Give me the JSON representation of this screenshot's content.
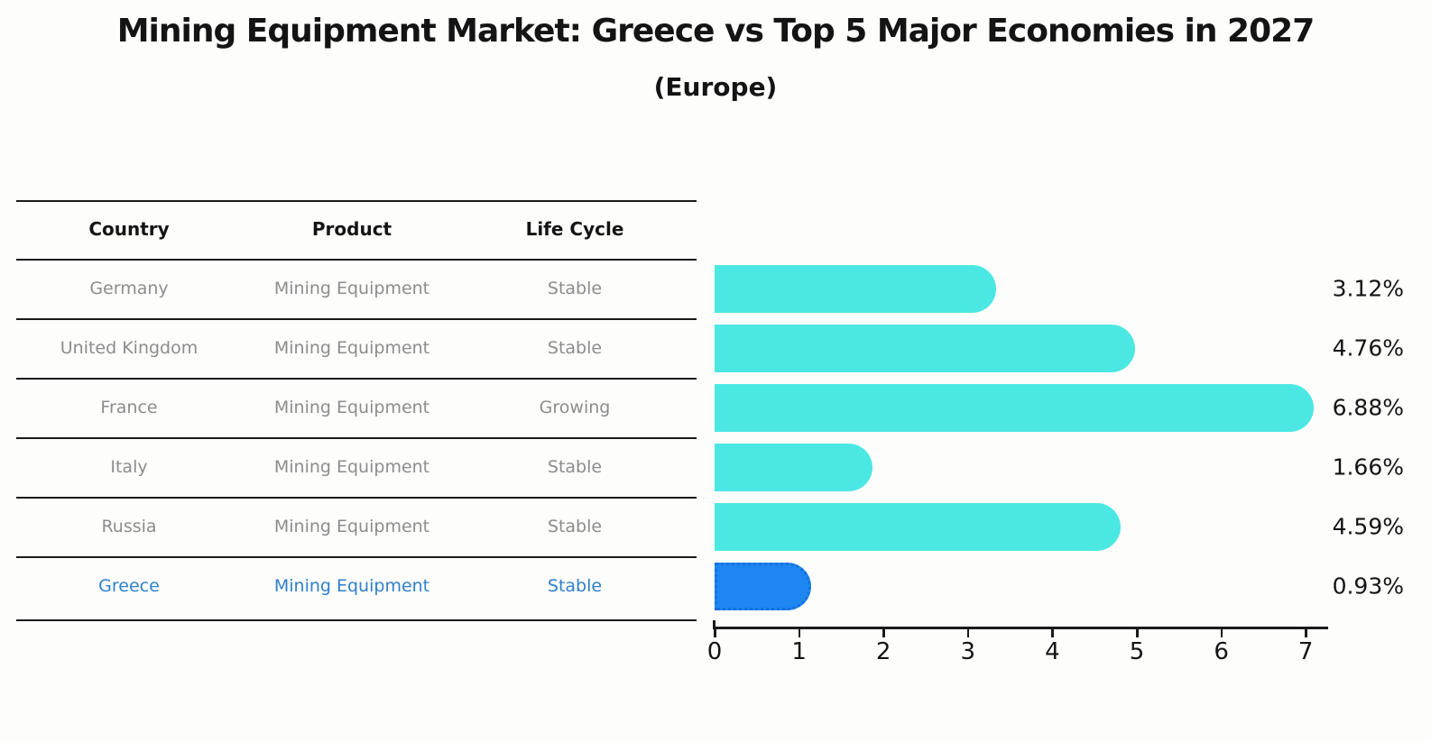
{
  "title": "Mining Equipment Market: Greece vs Top 5 Major Economies in 2027",
  "subtitle": "(Europe)",
  "table": {
    "headers": [
      "Country",
      "Product",
      "Life Cycle"
    ],
    "rows": [
      {
        "country": "Germany",
        "product": "Mining Equipment",
        "life_cycle": "Stable",
        "highlight": false
      },
      {
        "country": "United Kingdom",
        "product": "Mining Equipment",
        "life_cycle": "Stable",
        "highlight": false
      },
      {
        "country": "France",
        "product": "Mining Equipment",
        "life_cycle": "Growing",
        "highlight": false
      },
      {
        "country": "Italy",
        "product": "Mining Equipment",
        "life_cycle": "Stable",
        "highlight": false
      },
      {
        "country": "Russia",
        "product": "Mining Equipment",
        "life_cycle": "Stable",
        "highlight": false
      },
      {
        "country": "Greece",
        "product": "Mining Equipment",
        "life_cycle": "Stable",
        "highlight": true
      }
    ]
  },
  "chart_data": {
    "type": "bar",
    "orientation": "horizontal",
    "title": "Mining Equipment Market: Greece vs Top 5 Major Economies in 2027 (Europe)",
    "categories": [
      "Germany",
      "United Kingdom",
      "France",
      "Italy",
      "Russia",
      "Greece"
    ],
    "values": [
      3.12,
      4.76,
      6.88,
      1.66,
      4.59,
      0.93
    ],
    "value_labels": [
      "3.12%",
      "4.76%",
      "6.88%",
      "1.66%",
      "4.59%",
      "0.93%"
    ],
    "unit": "%",
    "x_ticks": [
      "0",
      "1",
      "2",
      "3",
      "4",
      "5",
      "6",
      "7"
    ],
    "xlim": [
      0,
      7.25
    ],
    "highlight_index": 5,
    "grid": false,
    "legend": false
  },
  "colors": {
    "bar": "#4be8e3",
    "highlight_bar": "#1e86f0",
    "highlight_border": "#1470e0",
    "highlight_text": "#2e80cc",
    "row_text": "#8c8c8c",
    "header_text": "#141414",
    "axis": "#1a1a1a"
  }
}
